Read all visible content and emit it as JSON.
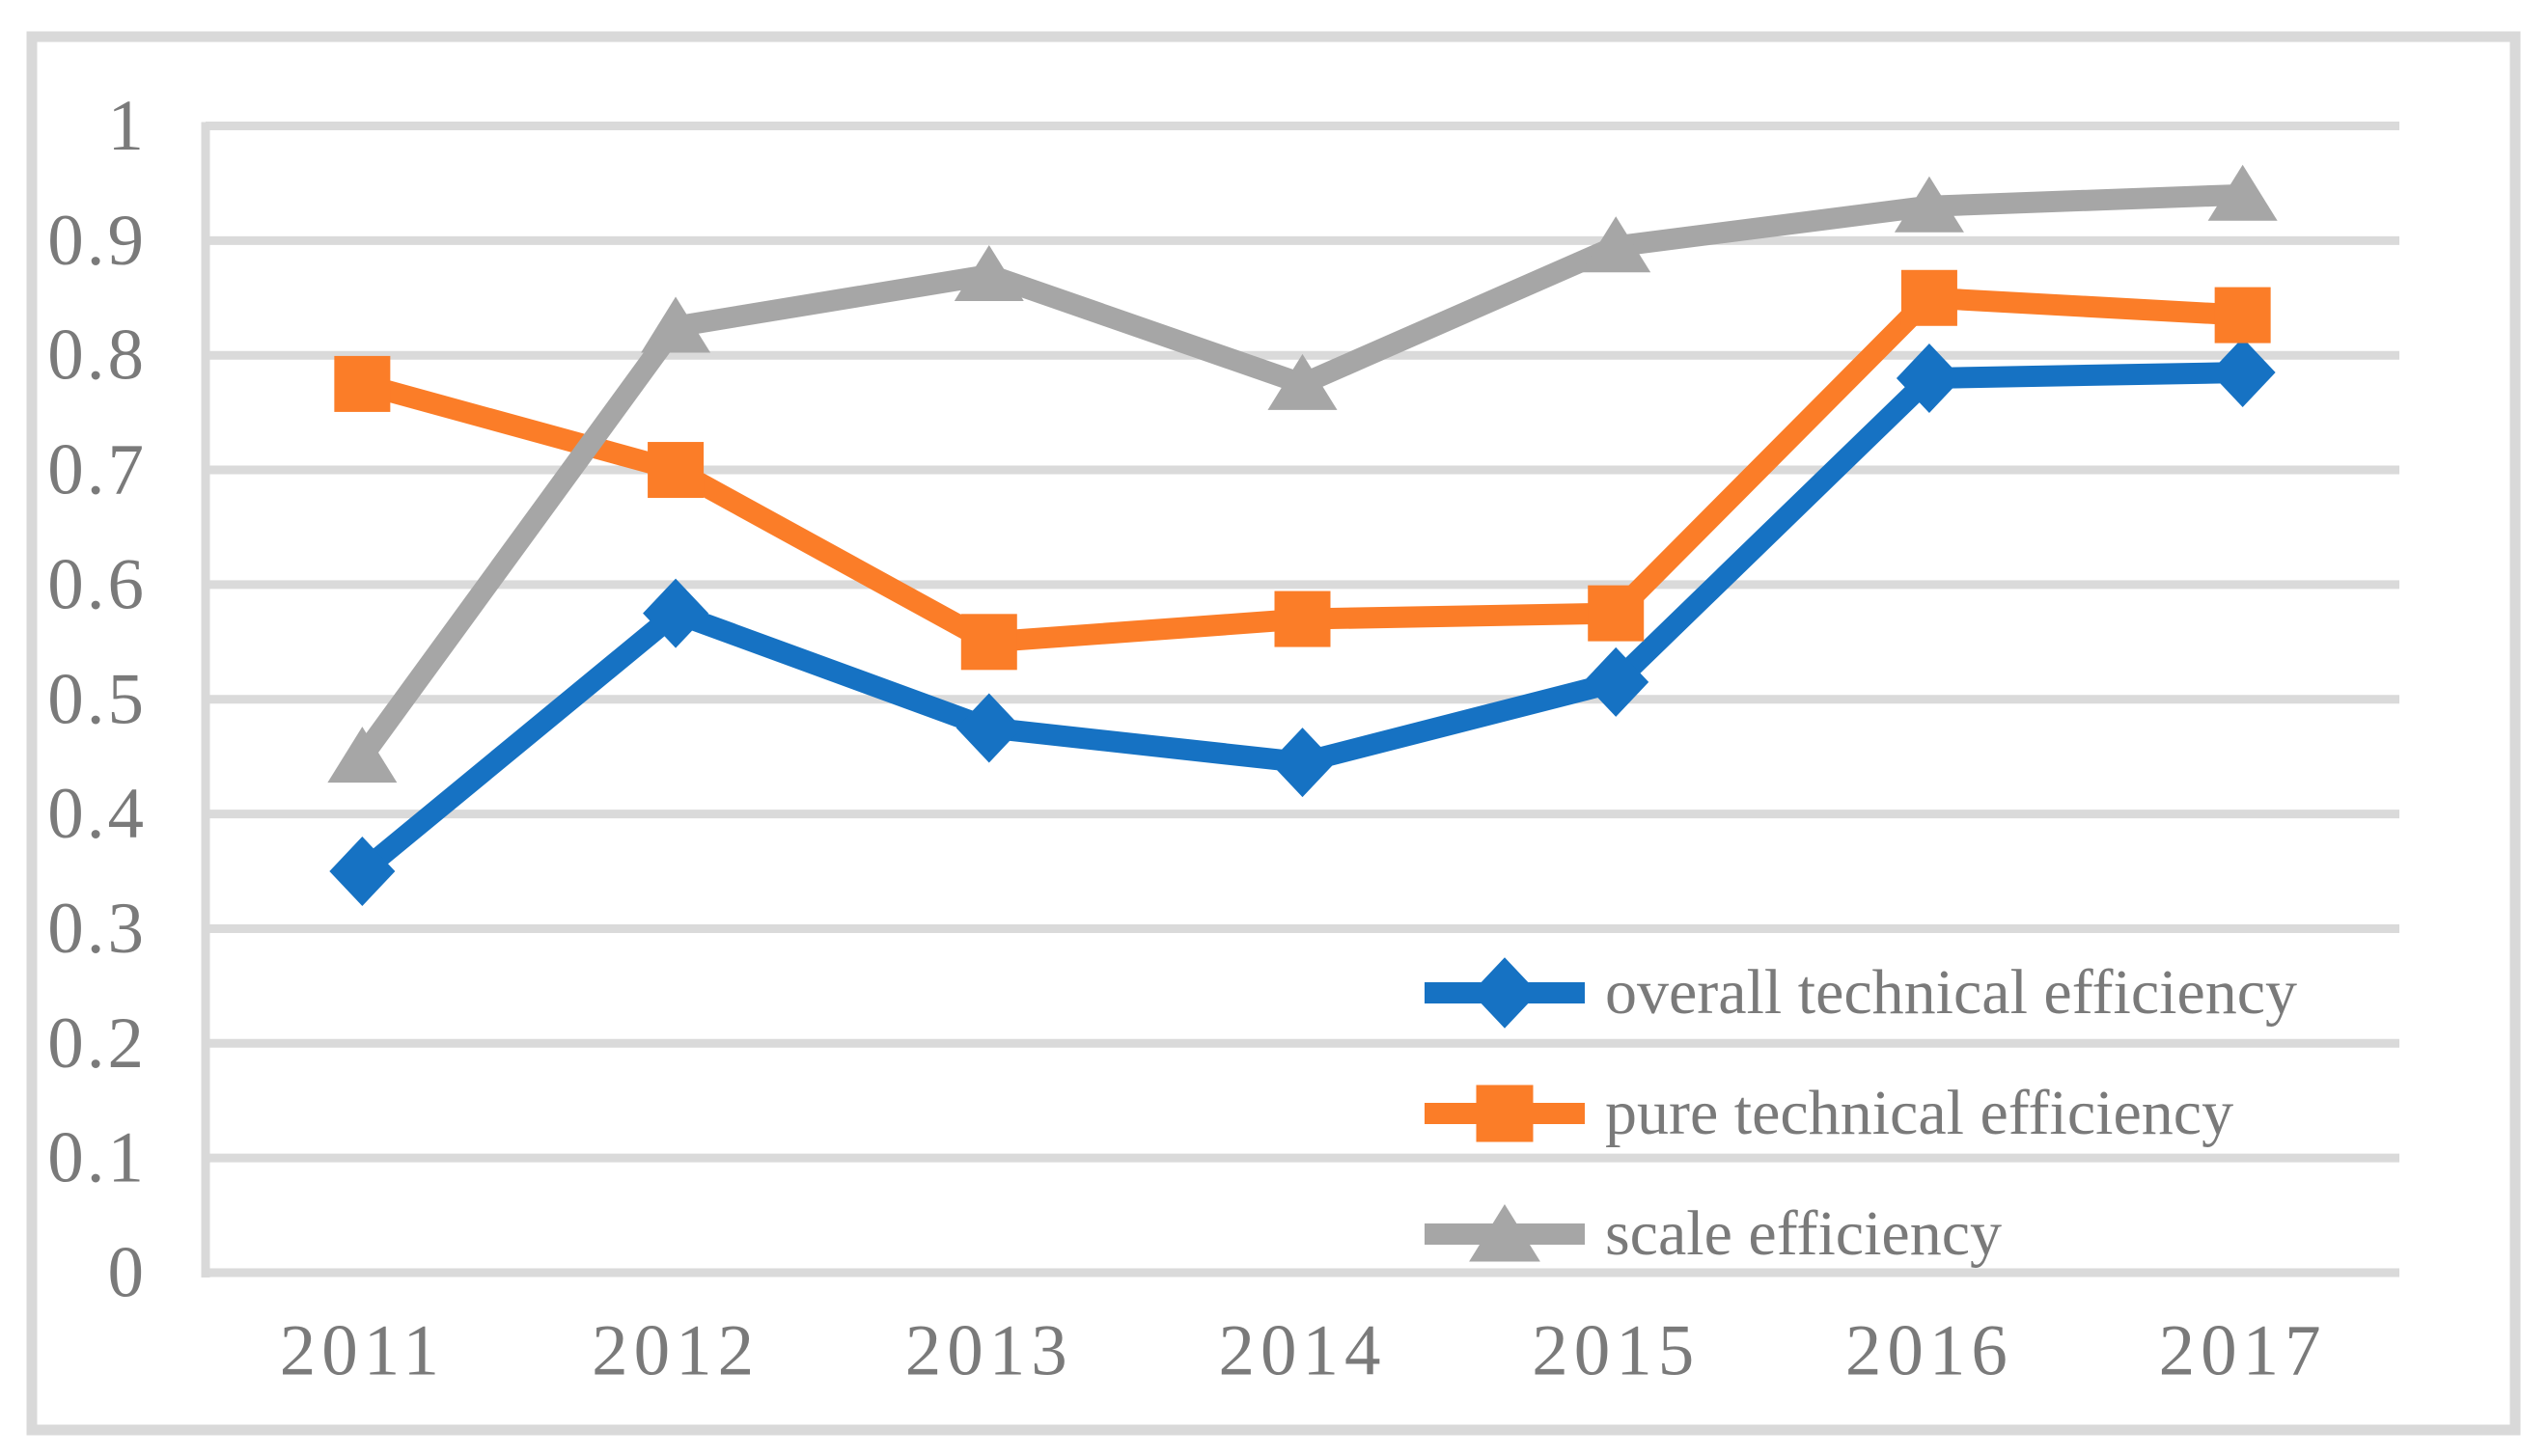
{
  "figure": {
    "background_color": "#ffffff",
    "frame_color": "#d9d9d9"
  },
  "chart_data": {
    "type": "line",
    "categories": [
      "2011",
      "2012",
      "2013",
      "2014",
      "2015",
      "2016",
      "2017"
    ],
    "series": [
      {
        "name": "overall technical efficiency",
        "color": "#1672c3",
        "marker": "diamond",
        "values": [
          0.35,
          0.575,
          0.475,
          0.445,
          0.515,
          0.78,
          0.785
        ]
      },
      {
        "name": "pure technical efficiency",
        "color": "#fb7d28",
        "marker": "square",
        "values": [
          0.775,
          0.7,
          0.55,
          0.57,
          0.575,
          0.85,
          0.835
        ]
      },
      {
        "name": "scale efficiency",
        "color": "#a6a6a6",
        "marker": "triangle",
        "values": [
          0.45,
          0.825,
          0.87,
          0.775,
          0.895,
          0.93,
          0.94
        ]
      }
    ],
    "title": "",
    "xlabel": "",
    "ylabel": "",
    "ylim": [
      0,
      1
    ],
    "y_tick_labels": [
      "0",
      "0.1",
      "0.2",
      "0.3",
      "0.4",
      "0.5",
      "0.6",
      "0.7",
      "0.8",
      "0.9",
      "1"
    ],
    "grid": true,
    "gridline_color": "#dadada",
    "axis_line_color": "#d9d9d9",
    "axis_text_color": "#7a7a7a",
    "legend_position": "inside-bottom-right"
  }
}
